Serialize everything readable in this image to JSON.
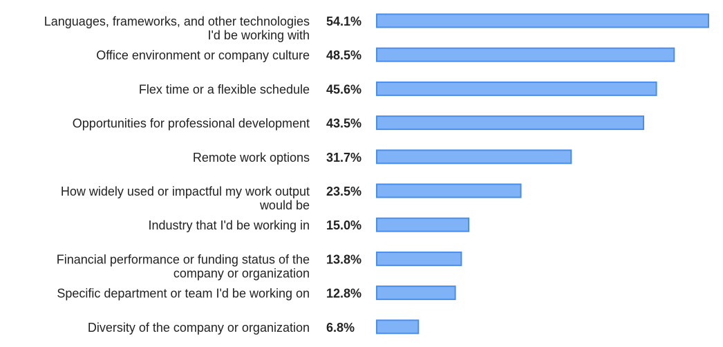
{
  "chart_data": {
    "type": "bar",
    "orientation": "horizontal",
    "categories": [
      [
        "Languages, frameworks, and other technologies",
        "I'd be working with"
      ],
      [
        "Office environment or company culture"
      ],
      [
        "Flex time or a flexible schedule"
      ],
      [
        "Opportunities for professional development"
      ],
      [
        "Remote work options"
      ],
      [
        "How widely used or impactful my work output",
        "would be"
      ],
      [
        "Industry that I'd be working in"
      ],
      [
        "Financial performance or funding status of the",
        "company or organization"
      ],
      [
        "Specific department or team I'd be working on"
      ],
      [
        "Diversity of the company or organization"
      ]
    ],
    "values": [
      54.1,
      48.5,
      45.6,
      43.5,
      31.7,
      23.5,
      15.0,
      13.8,
      12.8,
      6.8
    ],
    "value_labels": [
      "54.1%",
      "48.5%",
      "45.6%",
      "43.5%",
      "31.7%",
      "23.5%",
      "15.0%",
      "13.8%",
      "12.8%",
      "6.8%"
    ],
    "xlim": [
      0,
      54.1
    ],
    "grid": false,
    "legend": "none",
    "colors": {
      "bar_fill": "#7fb2f7",
      "bar_stroke": "#4a8eea",
      "text": "#222222"
    }
  }
}
